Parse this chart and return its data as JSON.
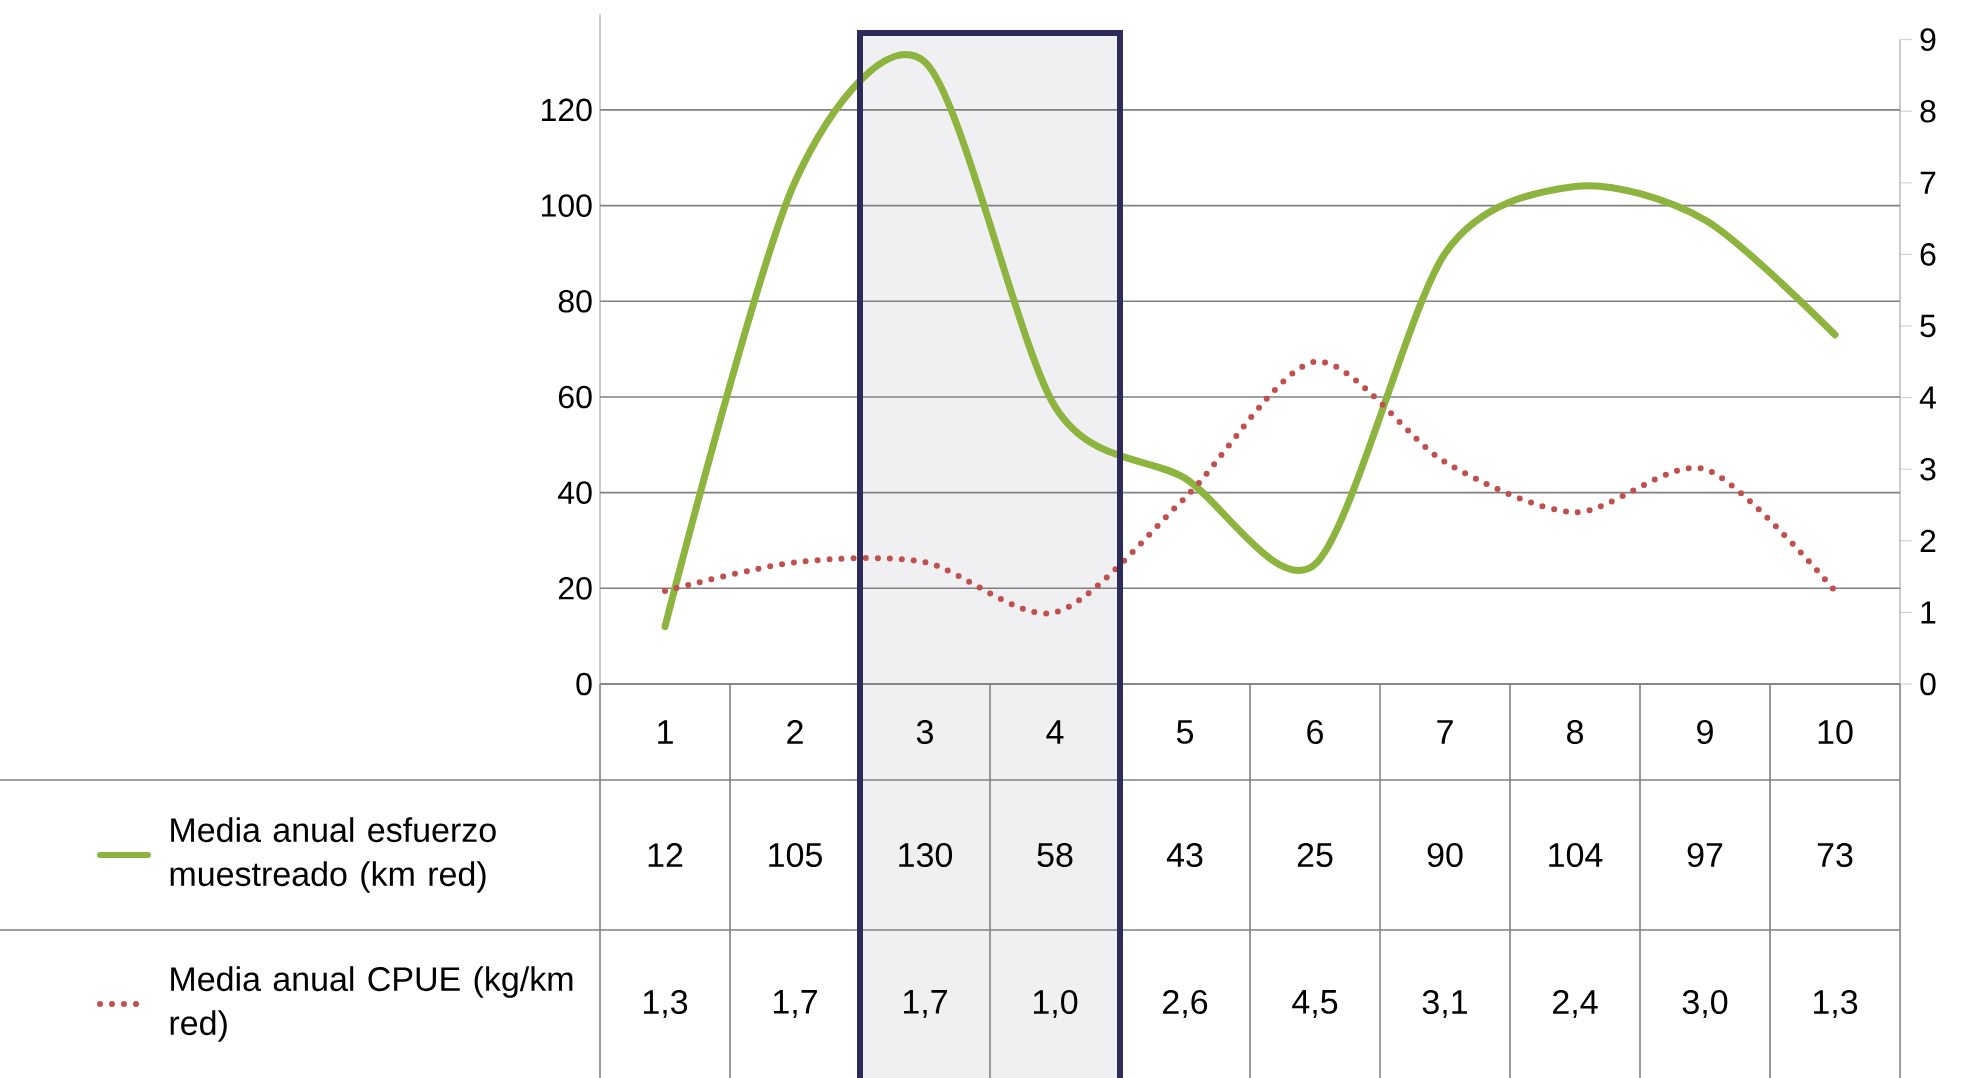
{
  "chart_data": {
    "type": "line",
    "categories": [
      "1",
      "2",
      "3",
      "4",
      "5",
      "6",
      "7",
      "8",
      "9",
      "10"
    ],
    "series": [
      {
        "name": "Media anual esfuerzo muestreado (km red)",
        "color": "#8db43e",
        "values": [
          12,
          105,
          130,
          58,
          43,
          25,
          90,
          104,
          97,
          73
        ],
        "value_labels": [
          "12",
          "105",
          "130",
          "58",
          "43",
          "25",
          "90",
          "104",
          "97",
          "73"
        ],
        "line_style": "solid"
      },
      {
        "name": "Media anual CPUE (kg/km red)",
        "color": "#c0504d",
        "axis": "y2",
        "values": [
          1.3,
          1.7,
          1.7,
          1.0,
          2.6,
          4.5,
          3.1,
          2.4,
          3.0,
          1.3
        ],
        "value_labels": [
          "1,3",
          "1,7",
          "1,7",
          "1,0",
          "2,6",
          "4,5",
          "3,1",
          "2,4",
          "3,0",
          "1,3"
        ],
        "line_style": "dotted"
      }
    ],
    "ylim": [
      0,
      140
    ],
    "yticks": [
      0,
      20,
      40,
      60,
      80,
      100,
      120
    ],
    "y2lim": [
      0,
      9
    ],
    "y2ticks": [
      0,
      1,
      2,
      3,
      4,
      5,
      6,
      7,
      8,
      9
    ],
    "grid": "y",
    "marker": "none",
    "legend": "bottom left",
    "bands": [
      {
        "axis": "x",
        "from": "3",
        "to": "4",
        "color": "#f0f0f3"
      }
    ]
  }
}
